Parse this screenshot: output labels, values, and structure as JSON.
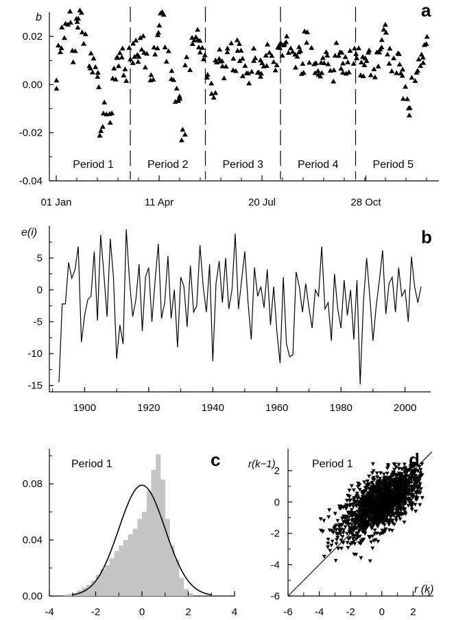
{
  "chart_data": [
    {
      "panel": "a",
      "type": "scatter",
      "ylabel": "b",
      "ylim": [
        -0.04,
        0.03
      ],
      "yticks": [
        "0.02",
        "0.00",
        "-0.02",
        "-0.04"
      ],
      "xticks": [
        "01 Jan",
        "11 Apr",
        "20 Jul",
        "28 Oct"
      ],
      "x_domain_days": [
        1,
        365
      ],
      "period_boundaries_day": [
        73,
        146,
        219,
        292
      ],
      "periods": [
        "Period 1",
        "Period 2",
        "Period 3",
        "Period 4",
        "Period 5"
      ],
      "marker": "triangle-up",
      "series": [
        {
          "x": [
            1,
            5,
            9,
            13,
            17,
            21,
            25,
            29,
            33,
            37,
            41,
            45,
            49,
            53,
            57,
            61,
            65,
            69,
            73,
            77,
            81,
            85,
            89,
            93,
            97,
            101,
            105,
            109,
            113,
            117,
            121,
            125,
            129,
            133,
            137,
            141,
            145,
            149,
            153,
            157,
            161,
            165,
            169,
            173,
            177,
            181,
            185,
            189,
            193,
            197,
            201,
            205,
            209,
            213,
            217,
            221,
            225,
            229,
            233,
            237,
            241,
            245,
            249,
            253,
            257,
            261,
            265,
            269,
            273,
            277,
            281,
            285,
            289,
            293,
            297,
            301,
            305,
            309,
            313,
            317,
            321,
            325,
            329,
            333,
            337,
            341,
            345,
            349,
            353,
            357,
            361
          ],
          "y": [
            0.0,
            0.016,
            0.022,
            0.028,
            0.012,
            0.026,
            0.03,
            0.02,
            0.01,
            0.008,
            0.002,
            -0.02,
            -0.01,
            -0.015,
            0.004,
            0.01,
            0.013,
            0.004,
            0.012,
            0.015,
            0.012,
            0.018,
            0.01,
            0.003,
            0.014,
            0.022,
            0.03,
            0.012,
            0.005,
            -0.004,
            -0.006,
            -0.02,
            0.008,
            0.018,
            0.02,
            0.016,
            0.012,
            0.004,
            -0.005,
            0.01,
            0.012,
            0.006,
            0.014,
            0.008,
            0.016,
            0.012,
            0.006,
            0.002,
            0.012,
            0.004,
            0.008,
            0.01,
            0.014,
            0.006,
            0.016,
            0.015,
            0.019,
            0.014,
            0.01,
            0.014,
            0.006,
            0.02,
            0.012,
            0.007,
            0.004,
            0.01,
            0.012,
            0.004,
            0.014,
            0.01,
            0.008,
            0.008,
            0.012,
            0.014,
            0.006,
            0.01,
            0.012,
            0.004,
            0.01,
            0.016,
            0.024,
            0.012,
            0.008,
            0.01,
            0.004,
            -0.004,
            -0.01,
            0.002,
            0.008,
            0.01,
            0.018
          ]
        }
      ]
    },
    {
      "panel": "b",
      "type": "line",
      "ylabel": "e(i)",
      "ylim": [
        -16,
        10
      ],
      "yticks": [
        "5",
        "0",
        "-5",
        "-10",
        "-15"
      ],
      "xticks": [
        "1900",
        "1920",
        "1940",
        "1960",
        "1980",
        "2000"
      ],
      "xlim": [
        1889,
        2008
      ],
      "series": [
        {
          "x": [
            1892,
            1893,
            1894,
            1895,
            1896,
            1897,
            1898,
            1899,
            1900,
            1901,
            1902,
            1903,
            1904,
            1905,
            1906,
            1907,
            1908,
            1909,
            1910,
            1911,
            1912,
            1913,
            1914,
            1915,
            1916,
            1917,
            1918,
            1919,
            1920,
            1921,
            1922,
            1923,
            1924,
            1925,
            1926,
            1927,
            1928,
            1929,
            1930,
            1931,
            1932,
            1933,
            1934,
            1935,
            1936,
            1937,
            1938,
            1939,
            1940,
            1941,
            1942,
            1943,
            1944,
            1945,
            1946,
            1947,
            1948,
            1949,
            1950,
            1951,
            1952,
            1953,
            1954,
            1955,
            1956,
            1957,
            1958,
            1959,
            1960,
            1961,
            1962,
            1963,
            1964,
            1965,
            1966,
            1967,
            1968,
            1969,
            1970,
            1971,
            1972,
            1973,
            1974,
            1975,
            1976,
            1977,
            1978,
            1979,
            1980,
            1981,
            1982,
            1983,
            1984,
            1985,
            1986,
            1987,
            1988,
            1989,
            1990,
            1991,
            1992,
            1993,
            1994,
            1995,
            1996,
            1997,
            1998,
            1999,
            2000,
            2001,
            2002,
            2003,
            2004,
            2005
          ],
          "y": [
            -14.5,
            -2.2,
            -2.2,
            4.3,
            1.8,
            3.2,
            6.8,
            -8.2,
            -4.0,
            -1.5,
            -1.0,
            6.0,
            -4.8,
            8.6,
            2.6,
            -4.2,
            8.0,
            2.0,
            -10.8,
            -5.5,
            -8.5,
            9.5,
            1.5,
            -4.2,
            -1.5,
            4.0,
            -6.5,
            2.0,
            3.5,
            -5.0,
            1.5,
            7.2,
            -4.5,
            -2.0,
            5.3,
            -4.5,
            0.0,
            -9.0,
            2.0,
            0.5,
            -5.8,
            3.8,
            -3.5,
            -2.5,
            7.0,
            0.5,
            -3.5,
            4.0,
            -11.2,
            1.0,
            4.5,
            -2.0,
            5.0,
            -3.0,
            0.0,
            8.8,
            -3.0,
            1.5,
            6.0,
            -2.0,
            -7.8,
            3.5,
            -1.0,
            0.5,
            -2.8,
            3.2,
            -5.5,
            0.5,
            -6.5,
            -11.5,
            2.0,
            -8.5,
            -10.5,
            -10.2,
            2.8,
            0.5,
            -3.5,
            1.0,
            -2.8,
            -6.0,
            0.0,
            -1.0,
            6.8,
            -3.0,
            -2.0,
            -8.0,
            2.5,
            -3.0,
            -6.0,
            1.5,
            -4.0,
            0.0,
            -7.8,
            1.5,
            -14.8,
            -2.0,
            5.0,
            -1.0,
            -8.0,
            -2.5,
            1.5,
            6.2,
            -3.8,
            1.0,
            2.0,
            -3.5,
            3.5,
            -1.0,
            0.0,
            -5.0,
            5.2,
            0.5,
            -2.0,
            0.5
          ]
        }
      ]
    },
    {
      "panel": "c",
      "type": "bar",
      "title": "Period 1",
      "xlim": [
        -4,
        4
      ],
      "ylim": [
        0,
        0.105
      ],
      "yticks": [
        "0.08",
        "0.04",
        "0.00"
      ],
      "xticks": [
        "-4",
        "-2",
        "0",
        "2",
        "4"
      ],
      "bin_edges": [
        -3.4,
        -3.2,
        -3.0,
        -2.8,
        -2.6,
        -2.4,
        -2.2,
        -2.0,
        -1.8,
        -1.6,
        -1.4,
        -1.2,
        -1.0,
        -0.8,
        -0.6,
        -0.4,
        -0.2,
        0.0,
        0.2,
        0.4,
        0.6,
        0.8,
        1.0,
        1.2,
        1.4,
        1.6,
        1.8,
        2.0,
        2.2
      ],
      "values": [
        0.001,
        0.0015,
        0.002,
        0.004,
        0.006,
        0.008,
        0.011,
        0.015,
        0.019,
        0.022,
        0.027,
        0.032,
        0.036,
        0.04,
        0.044,
        0.048,
        0.055,
        0.06,
        0.075,
        0.09,
        0.101,
        0.083,
        0.055,
        0.036,
        0.026,
        0.013,
        0.005,
        0.002
      ],
      "curve": "normal fit"
    },
    {
      "panel": "d",
      "type": "scatter",
      "title": "Period 1",
      "xlabel": "r (k)",
      "ylabel": "r(k−1)",
      "xlim": [
        -6,
        3.3
      ],
      "ylim": [
        -6,
        3.4
      ],
      "xticks": [
        "-6",
        "-4",
        "-2",
        "0",
        "2"
      ],
      "yticks": [
        "2",
        "0",
        "-2",
        "-4",
        "-6"
      ],
      "marker": "triangle-down",
      "reference_line": [
        [
          -6,
          -6
        ],
        [
          3.2,
          3.2
        ]
      ],
      "cloud": {
        "center": [
          0,
          0
        ],
        "spread": [
          1.3,
          1.1
        ],
        "correlation": 0.65,
        "x_range": [
          -4,
          2.6
        ],
        "y_range": [
          -4,
          2.5
        ]
      }
    }
  ],
  "panels": {
    "a": {
      "letter": "a",
      "ylabel": "b",
      "periods": [
        "Period 1",
        "Period 2",
        "Period 3",
        "Period 4",
        "Period 5"
      ]
    },
    "b": {
      "letter": "b",
      "ylabel": "e(i)"
    },
    "c": {
      "letter": "c",
      "title": "Period 1"
    },
    "d": {
      "letter": "d",
      "title": "Period 1",
      "xlabel": "r (k)",
      "ylabel": "r(k−1)"
    }
  }
}
